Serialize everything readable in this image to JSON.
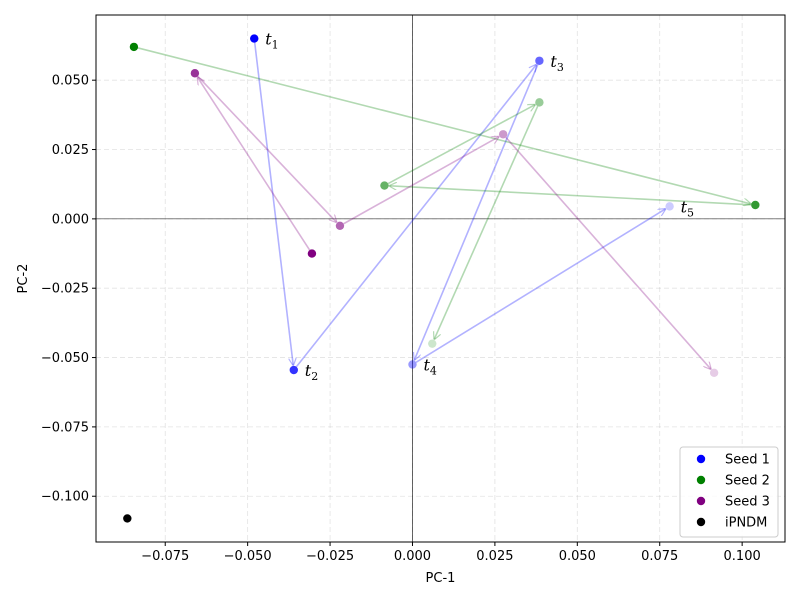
{
  "chart_data": {
    "type": "scatter",
    "xlabel": "PC-1",
    "ylabel": "PC-2",
    "xlim": [
      -0.096,
      0.113
    ],
    "ylim": [
      -0.1165,
      0.0735
    ],
    "x_ticks": [
      -0.075,
      -0.05,
      -0.025,
      0.0,
      0.025,
      0.05,
      0.075,
      0.1
    ],
    "x_tick_labels": [
      "−0.075",
      "−0.050",
      "−0.025",
      "0.000",
      "0.025",
      "0.050",
      "0.075",
      "0.100"
    ],
    "y_ticks": [
      -0.1,
      -0.075,
      -0.05,
      -0.025,
      0.0,
      0.025,
      0.05
    ],
    "y_tick_labels": [
      "−0.100",
      "−0.075",
      "−0.050",
      "−0.025",
      "0.000",
      "0.025",
      "0.050"
    ],
    "grid": true,
    "legend_position": "bottom-right",
    "series": [
      {
        "name": "Seed 1",
        "color": "#0000ff",
        "points": [
          {
            "x": -0.048,
            "y": 0.065
          },
          {
            "x": -0.036,
            "y": -0.0545
          },
          {
            "x": 0.0385,
            "y": 0.057
          },
          {
            "x": 0.0,
            "y": -0.0525
          },
          {
            "x": 0.078,
            "y": 0.0045
          }
        ]
      },
      {
        "name": "Seed 2",
        "color": "#008000",
        "points": [
          {
            "x": -0.0845,
            "y": 0.062
          },
          {
            "x": 0.104,
            "y": 0.005
          },
          {
            "x": -0.0085,
            "y": 0.012
          },
          {
            "x": 0.0385,
            "y": 0.042
          },
          {
            "x": 0.006,
            "y": -0.045
          }
        ]
      },
      {
        "name": "Seed 3",
        "color": "#800080",
        "points": [
          {
            "x": -0.0305,
            "y": -0.0125
          },
          {
            "x": -0.066,
            "y": 0.0525
          },
          {
            "x": -0.022,
            "y": -0.0025
          },
          {
            "x": 0.0275,
            "y": 0.0305
          },
          {
            "x": 0.0915,
            "y": -0.0555
          }
        ]
      },
      {
        "name": "iPNDM",
        "color": "#000000",
        "points": [
          {
            "x": -0.0865,
            "y": -0.108
          }
        ]
      }
    ],
    "annotations": [
      {
        "text": "t",
        "sub": "1",
        "x": -0.048,
        "y": 0.065
      },
      {
        "text": "t",
        "sub": "2",
        "x": -0.036,
        "y": -0.0545
      },
      {
        "text": "t",
        "sub": "3",
        "x": 0.0385,
        "y": 0.057
      },
      {
        "text": "t",
        "sub": "4",
        "x": 0.0,
        "y": -0.0525
      },
      {
        "text": "t",
        "sub": "5",
        "x": 0.078,
        "y": 0.0045
      }
    ]
  }
}
